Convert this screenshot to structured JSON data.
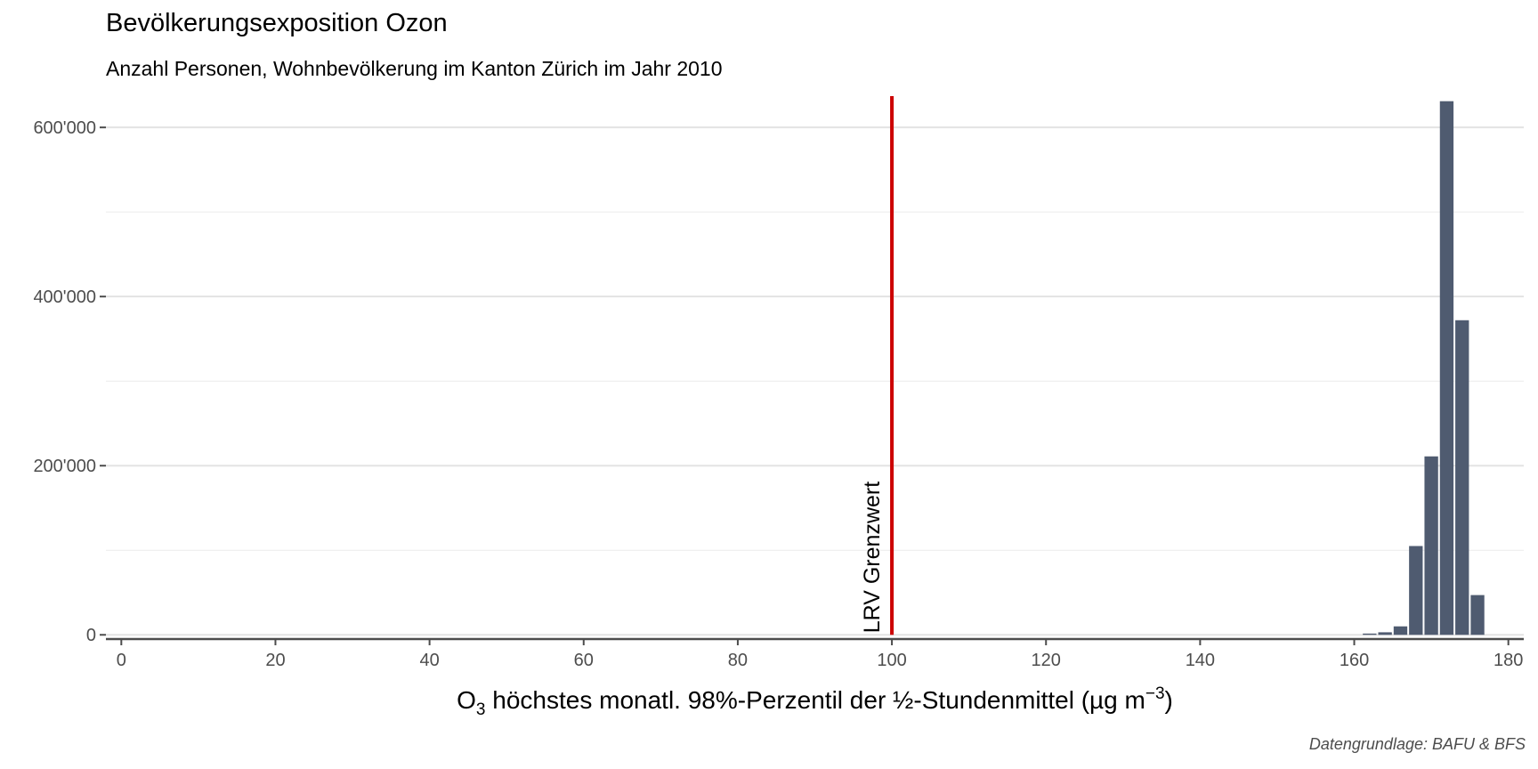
{
  "chart_data": {
    "type": "bar",
    "title": "Bevölkerungsexposition Ozon",
    "subtitle": "Anzahl Personen, Wohnbevölkerung im Kanton Zürich im Jahr 2010",
    "xlabel_parts": {
      "base": "O",
      "sub": "3",
      "main": " höchstes monatl. 98%-Perzentil der ½-Stundenmittel (µg m",
      "sup": "−3",
      "end": ")"
    },
    "ylabel": "",
    "caption": "Datengrundlage: BAFU & BFS",
    "xlim": [
      -2,
      182
    ],
    "ylim": [
      -5000,
      637000
    ],
    "x_ticks": [
      0,
      20,
      40,
      60,
      80,
      100,
      120,
      140,
      160,
      180
    ],
    "x_tick_labels": [
      "0",
      "20",
      "40",
      "60",
      "80",
      "100",
      "120",
      "140",
      "160",
      "180"
    ],
    "y_ticks": [
      0,
      200000,
      400000,
      600000
    ],
    "y_tick_labels": [
      "0",
      "200'000",
      "400'000",
      "600'000"
    ],
    "y_minor_ticks": [
      100000,
      300000,
      500000
    ],
    "bin_width": 2,
    "bars": [
      {
        "x": 162,
        "value": 1500
      },
      {
        "x": 164,
        "value": 3000
      },
      {
        "x": 166,
        "value": 10000
      },
      {
        "x": 168,
        "value": 105000
      },
      {
        "x": 170,
        "value": 211000
      },
      {
        "x": 172,
        "value": 631000
      },
      {
        "x": 174,
        "value": 372000
      },
      {
        "x": 176,
        "value": 47000
      }
    ],
    "bar_color": "#4f5b70",
    "reference_line": {
      "x": 100,
      "label": "LRV Grenzwert",
      "color": "#cc0000"
    },
    "grid": true,
    "legend": "none"
  }
}
